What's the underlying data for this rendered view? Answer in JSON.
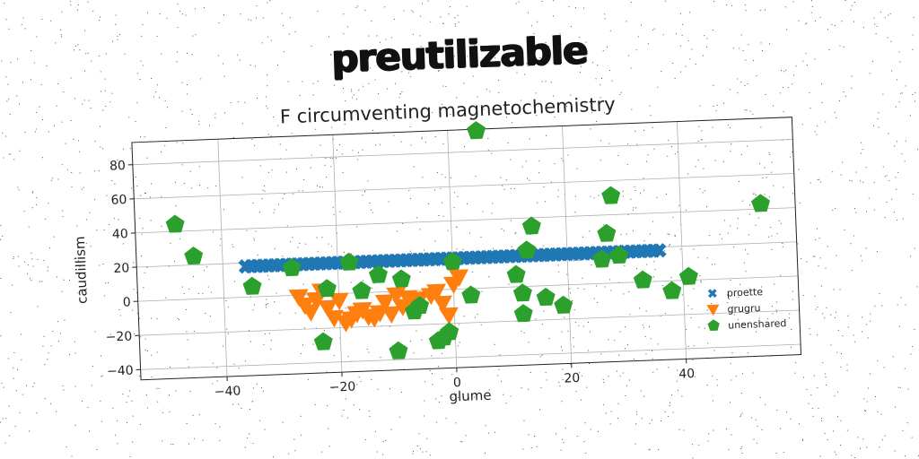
{
  "suptitle": "preutilizable",
  "chart_data": {
    "type": "scatter",
    "title": "F circumventing magnetochemistry",
    "xlabel": "glume",
    "ylabel": "caudillism",
    "xlim": [
      -55,
      60
    ],
    "ylim": [
      -46,
      93
    ],
    "xticks": [
      -40,
      -20,
      0,
      20,
      40
    ],
    "yticks": [
      -40,
      -20,
      0,
      20,
      40,
      60,
      80
    ],
    "grid": true,
    "legend_position": "lower-right",
    "series": [
      {
        "name": "proette",
        "marker": "x",
        "color": "#1f77b4",
        "points": [
          [
            -36,
            18
          ],
          [
            -35,
            18
          ],
          [
            -34,
            18
          ],
          [
            -33,
            18
          ],
          [
            -32,
            18
          ],
          [
            -31,
            18
          ],
          [
            -30,
            18
          ],
          [
            -29,
            18
          ],
          [
            -28,
            18
          ],
          [
            -27,
            18
          ],
          [
            -26,
            18
          ],
          [
            -25,
            18
          ],
          [
            -24,
            18
          ],
          [
            -23,
            18
          ],
          [
            -22,
            18
          ],
          [
            -21,
            18
          ],
          [
            -20,
            18
          ],
          [
            -19,
            18
          ],
          [
            -18,
            18
          ],
          [
            -17,
            18
          ],
          [
            -16,
            18
          ],
          [
            -15,
            18
          ],
          [
            -14,
            18
          ],
          [
            -13,
            18
          ],
          [
            -12,
            18
          ],
          [
            -11,
            18
          ],
          [
            -10,
            18
          ],
          [
            -9,
            18
          ],
          [
            -8,
            18
          ],
          [
            -7,
            18
          ],
          [
            -6,
            18
          ],
          [
            -5,
            18
          ],
          [
            -4,
            18
          ],
          [
            -3,
            18
          ],
          [
            -2,
            18
          ],
          [
            -1,
            18
          ],
          [
            0,
            18
          ],
          [
            1,
            18
          ],
          [
            2,
            18
          ],
          [
            3,
            18
          ],
          [
            4,
            18
          ],
          [
            5,
            18
          ],
          [
            6,
            18
          ],
          [
            7,
            18
          ],
          [
            8,
            18
          ],
          [
            9,
            18
          ],
          [
            10,
            18
          ],
          [
            11,
            18
          ],
          [
            12,
            18
          ],
          [
            13,
            18
          ],
          [
            14,
            18
          ],
          [
            15,
            18
          ],
          [
            16,
            18
          ],
          [
            17,
            18
          ],
          [
            18,
            18
          ],
          [
            19,
            18
          ],
          [
            20,
            18
          ],
          [
            21,
            18
          ],
          [
            22,
            18
          ],
          [
            23,
            18
          ],
          [
            24,
            18
          ],
          [
            25,
            18
          ],
          [
            26,
            18
          ],
          [
            27,
            18
          ],
          [
            28,
            18
          ],
          [
            29,
            18
          ],
          [
            30,
            18
          ],
          [
            31,
            18
          ],
          [
            32,
            18
          ],
          [
            33,
            18
          ],
          [
            34,
            18
          ],
          [
            35,
            18
          ],
          [
            36,
            18
          ]
        ]
      },
      {
        "name": "grugru",
        "marker": "v",
        "color": "#ff7f0e",
        "points": [
          [
            -27,
            -1
          ],
          [
            -26,
            -6
          ],
          [
            -25,
            -10
          ],
          [
            -24,
            -3
          ],
          [
            -23,
            2
          ],
          [
            -22,
            -8
          ],
          [
            -21,
            -14
          ],
          [
            -20,
            -4
          ],
          [
            -19,
            -17
          ],
          [
            -18,
            -15
          ],
          [
            -17,
            -12
          ],
          [
            -16,
            -10
          ],
          [
            -15,
            -14
          ],
          [
            -14,
            -15
          ],
          [
            -13,
            -12
          ],
          [
            -12,
            -6
          ],
          [
            -11,
            -13
          ],
          [
            -10,
            -2
          ],
          [
            -9,
            -9
          ],
          [
            -8,
            -4
          ],
          [
            -7,
            -8
          ],
          [
            -6,
            -5
          ],
          [
            -4,
            -3
          ],
          [
            -3,
            -1
          ],
          [
            -2,
            -8
          ],
          [
            -1,
            -15
          ],
          [
            0,
            3
          ],
          [
            1,
            7
          ]
        ]
      },
      {
        "name": "unenshared",
        "marker": "p",
        "color": "#2ca02c",
        "points": [
          [
            -48,
            44
          ],
          [
            -45,
            25
          ],
          [
            -35,
            6
          ],
          [
            -28,
            16
          ],
          [
            -22,
            3
          ],
          [
            -23,
            -28
          ],
          [
            -18,
            18
          ],
          [
            -16,
            1
          ],
          [
            -13,
            10
          ],
          [
            -10,
            -35
          ],
          [
            -9,
            7
          ],
          [
            -7,
            -12
          ],
          [
            -6,
            -9
          ],
          [
            -3,
            -30
          ],
          [
            -2,
            -28
          ],
          [
            -1,
            -25
          ],
          [
            0,
            16
          ],
          [
            3,
            -4
          ],
          [
            5,
            92
          ],
          [
            11,
            7
          ],
          [
            12,
            -4
          ],
          [
            12,
            -16
          ],
          [
            13,
            21
          ],
          [
            14,
            35
          ],
          [
            16,
            -7
          ],
          [
            19,
            -12
          ],
          [
            26,
            14
          ],
          [
            27,
            29
          ],
          [
            28,
            51
          ],
          [
            29,
            16
          ],
          [
            33,
            1
          ],
          [
            38,
            -6
          ],
          [
            41,
            2
          ],
          [
            54,
            43
          ]
        ]
      }
    ]
  }
}
